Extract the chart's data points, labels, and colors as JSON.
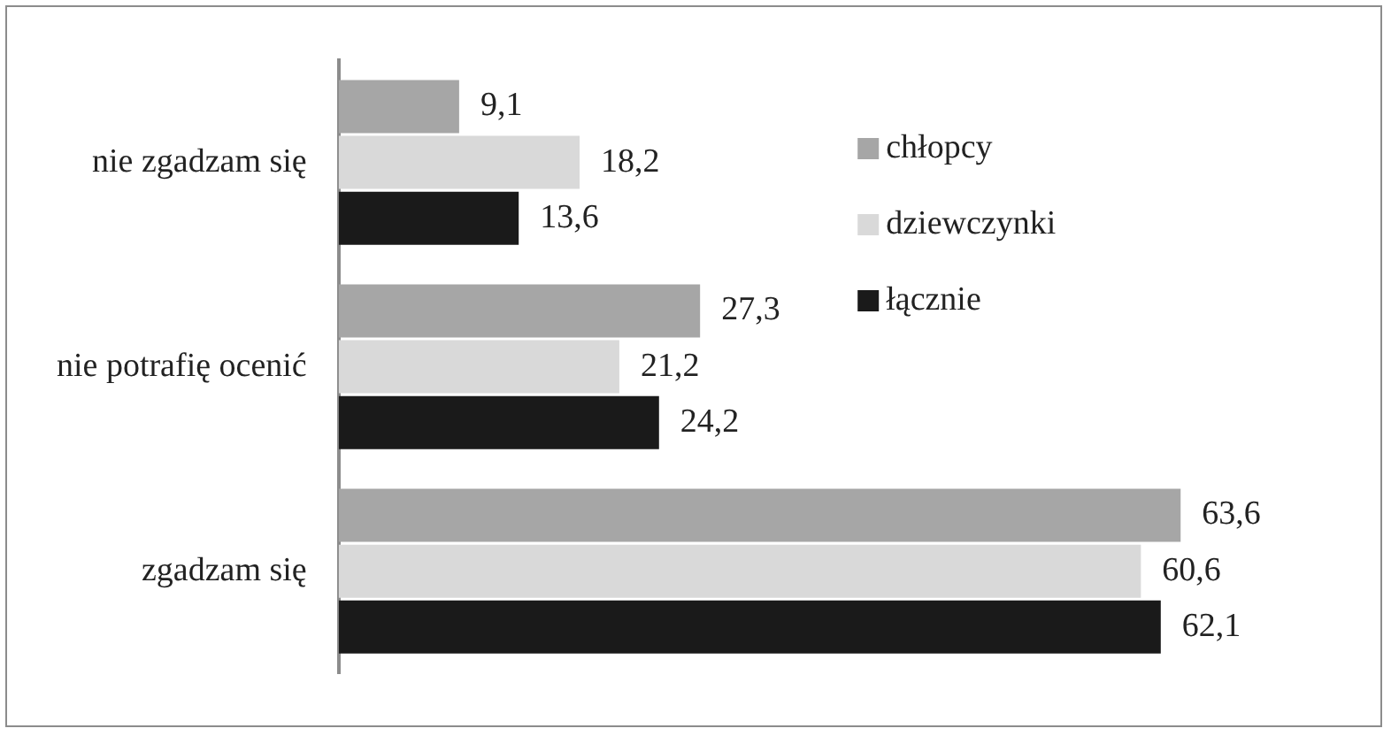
{
  "chart_data": {
    "type": "bar",
    "orientation": "horizontal",
    "categories": [
      "nie zgadzam się",
      "nie potrafię ocenić",
      "zgadzam się"
    ],
    "series": [
      {
        "name": "chłopcy",
        "color": "#a6a6a6",
        "values": [
          9.1,
          27.3,
          63.6
        ],
        "value_labels": [
          "9,1",
          "27,3",
          "63,6"
        ]
      },
      {
        "name": "dziewczynki",
        "color": "#d9d9d9",
        "values": [
          18.2,
          21.2,
          60.6
        ],
        "value_labels": [
          "18,2",
          "21,2",
          "60,6"
        ]
      },
      {
        "name": "łącznie",
        "color": "#1a1a1a",
        "values": [
          13.6,
          24.2,
          62.1
        ],
        "value_labels": [
          "13,6",
          "24,2",
          "62,1"
        ]
      }
    ],
    "grid": false,
    "legend": "top right",
    "tick_labels": "y"
  }
}
